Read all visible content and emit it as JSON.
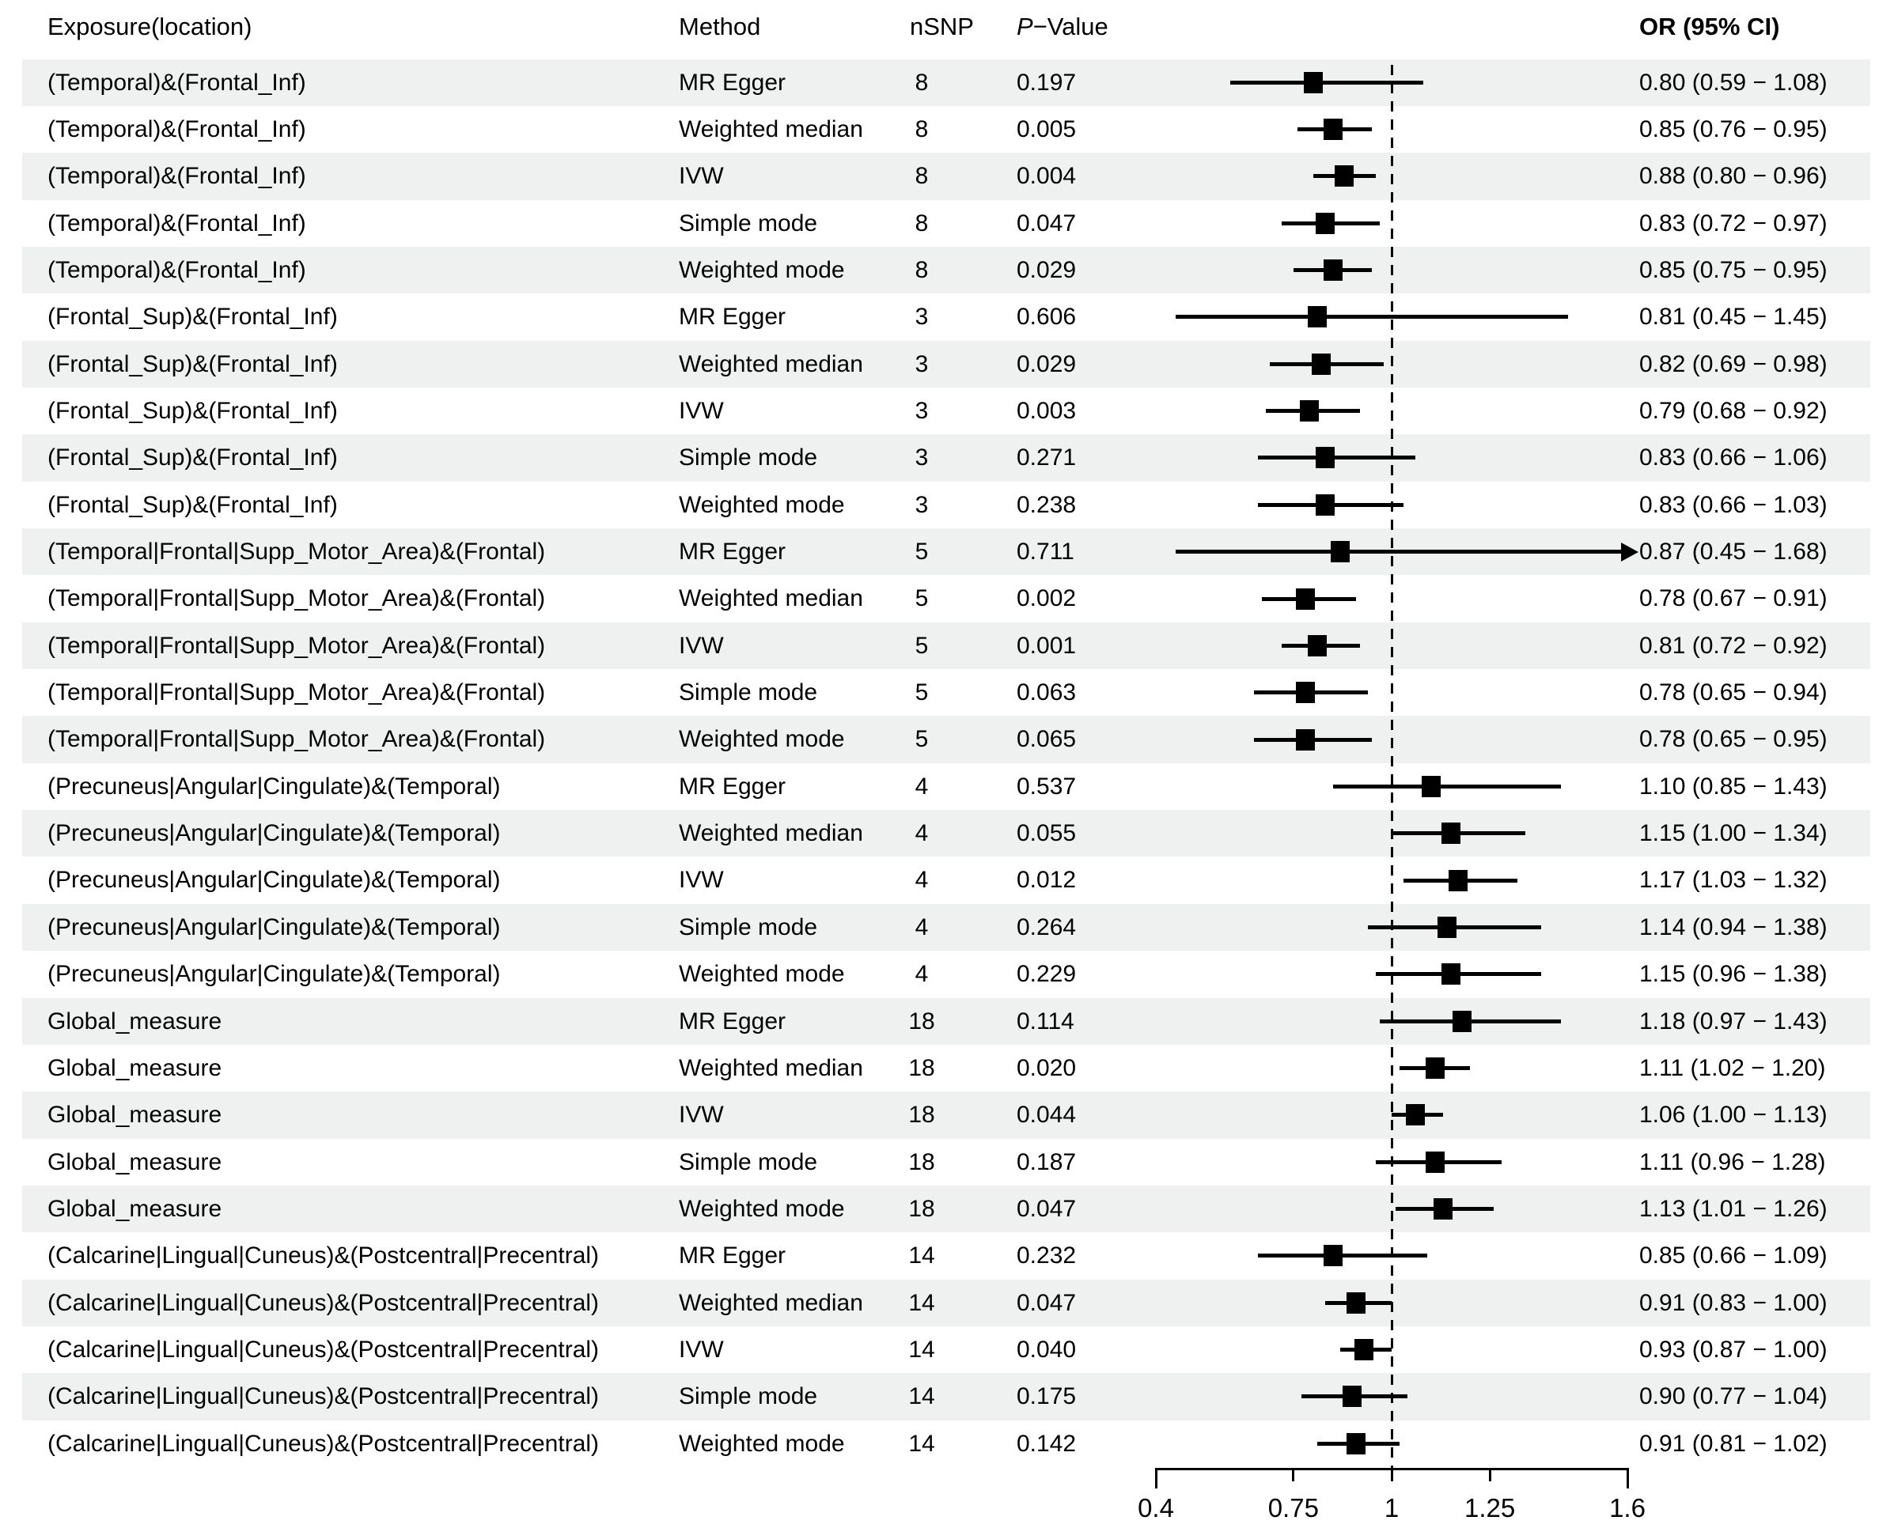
{
  "header": {
    "exposure": "Exposure(location)",
    "method": "Method",
    "nsnp": "nSNP",
    "pvalue_italic": "P",
    "pvalue_rest": "−Value",
    "or_ci": "OR (95% CI)"
  },
  "colors": {
    "stripe": "#eef1f0",
    "text": "#000000",
    "marker": "#000000",
    "reference_line": "#000000"
  },
  "chart_data": {
    "type": "forest",
    "columns": [
      "Exposure(location)",
      "Method",
      "nSNP",
      "P-Value",
      "OR (95% CI)"
    ],
    "xaxis": {
      "ticks": [
        0.4,
        0.75,
        1,
        1.25,
        1.6
      ],
      "tick_labels": [
        "0.4",
        "0.75",
        "1",
        "1.25",
        "1.6"
      ],
      "range": [
        0.4,
        1.6
      ],
      "reference_line": 1,
      "scale": "linear"
    },
    "rows": [
      {
        "exposure": "(Temporal)&(Frontal_Inf)",
        "method": "MR Egger",
        "nsnp": 8,
        "pvalue": "0.197",
        "or": 0.8,
        "ci_low": 0.59,
        "ci_high": 1.08,
        "or_text": "0.80 (0.59 − 1.08)",
        "arrow": false
      },
      {
        "exposure": "(Temporal)&(Frontal_Inf)",
        "method": "Weighted median",
        "nsnp": 8,
        "pvalue": "0.005",
        "or": 0.85,
        "ci_low": 0.76,
        "ci_high": 0.95,
        "or_text": "0.85 (0.76 − 0.95)",
        "arrow": false
      },
      {
        "exposure": "(Temporal)&(Frontal_Inf)",
        "method": "IVW",
        "nsnp": 8,
        "pvalue": "0.004",
        "or": 0.88,
        "ci_low": 0.8,
        "ci_high": 0.96,
        "or_text": "0.88 (0.80 − 0.96)",
        "arrow": false
      },
      {
        "exposure": "(Temporal)&(Frontal_Inf)",
        "method": "Simple mode",
        "nsnp": 8,
        "pvalue": "0.047",
        "or": 0.83,
        "ci_low": 0.72,
        "ci_high": 0.97,
        "or_text": "0.83 (0.72 − 0.97)",
        "arrow": false
      },
      {
        "exposure": "(Temporal)&(Frontal_Inf)",
        "method": "Weighted mode",
        "nsnp": 8,
        "pvalue": "0.029",
        "or": 0.85,
        "ci_low": 0.75,
        "ci_high": 0.95,
        "or_text": "0.85 (0.75 − 0.95)",
        "arrow": false
      },
      {
        "exposure": "(Frontal_Sup)&(Frontal_Inf)",
        "method": "MR Egger",
        "nsnp": 3,
        "pvalue": "0.606",
        "or": 0.81,
        "ci_low": 0.45,
        "ci_high": 1.45,
        "or_text": "0.81 (0.45 − 1.45)",
        "arrow": false
      },
      {
        "exposure": "(Frontal_Sup)&(Frontal_Inf)",
        "method": "Weighted median",
        "nsnp": 3,
        "pvalue": "0.029",
        "or": 0.82,
        "ci_low": 0.69,
        "ci_high": 0.98,
        "or_text": "0.82 (0.69 − 0.98)",
        "arrow": false
      },
      {
        "exposure": "(Frontal_Sup)&(Frontal_Inf)",
        "method": "IVW",
        "nsnp": 3,
        "pvalue": "0.003",
        "or": 0.79,
        "ci_low": 0.68,
        "ci_high": 0.92,
        "or_text": "0.79 (0.68 − 0.92)",
        "arrow": false
      },
      {
        "exposure": "(Frontal_Sup)&(Frontal_Inf)",
        "method": "Simple mode",
        "nsnp": 3,
        "pvalue": "0.271",
        "or": 0.83,
        "ci_low": 0.66,
        "ci_high": 1.06,
        "or_text": "0.83 (0.66 − 1.06)",
        "arrow": false
      },
      {
        "exposure": "(Frontal_Sup)&(Frontal_Inf)",
        "method": "Weighted mode",
        "nsnp": 3,
        "pvalue": "0.238",
        "or": 0.83,
        "ci_low": 0.66,
        "ci_high": 1.03,
        "or_text": "0.83 (0.66 − 1.03)",
        "arrow": false
      },
      {
        "exposure": "(Temporal|Frontal|Supp_Motor_Area)&(Frontal)",
        "method": "MR Egger",
        "nsnp": 5,
        "pvalue": "0.711",
        "or": 0.87,
        "ci_low": 0.45,
        "ci_high": 1.68,
        "or_text": "0.87 (0.45 − 1.68)",
        "arrow": true
      },
      {
        "exposure": "(Temporal|Frontal|Supp_Motor_Area)&(Frontal)",
        "method": "Weighted median",
        "nsnp": 5,
        "pvalue": "0.002",
        "or": 0.78,
        "ci_low": 0.67,
        "ci_high": 0.91,
        "or_text": "0.78 (0.67 − 0.91)",
        "arrow": false
      },
      {
        "exposure": "(Temporal|Frontal|Supp_Motor_Area)&(Frontal)",
        "method": "IVW",
        "nsnp": 5,
        "pvalue": "0.001",
        "or": 0.81,
        "ci_low": 0.72,
        "ci_high": 0.92,
        "or_text": "0.81 (0.72 − 0.92)",
        "arrow": false
      },
      {
        "exposure": "(Temporal|Frontal|Supp_Motor_Area)&(Frontal)",
        "method": "Simple mode",
        "nsnp": 5,
        "pvalue": "0.063",
        "or": 0.78,
        "ci_low": 0.65,
        "ci_high": 0.94,
        "or_text": "0.78 (0.65 − 0.94)",
        "arrow": false
      },
      {
        "exposure": "(Temporal|Frontal|Supp_Motor_Area)&(Frontal)",
        "method": "Weighted mode",
        "nsnp": 5,
        "pvalue": "0.065",
        "or": 0.78,
        "ci_low": 0.65,
        "ci_high": 0.95,
        "or_text": "0.78 (0.65 − 0.95)",
        "arrow": false
      },
      {
        "exposure": "(Precuneus|Angular|Cingulate)&(Temporal)",
        "method": "MR Egger",
        "nsnp": 4,
        "pvalue": "0.537",
        "or": 1.1,
        "ci_low": 0.85,
        "ci_high": 1.43,
        "or_text": "1.10 (0.85 − 1.43)",
        "arrow": false
      },
      {
        "exposure": "(Precuneus|Angular|Cingulate)&(Temporal)",
        "method": "Weighted median",
        "nsnp": 4,
        "pvalue": "0.055",
        "or": 1.15,
        "ci_low": 1.0,
        "ci_high": 1.34,
        "or_text": "1.15 (1.00 − 1.34)",
        "arrow": false
      },
      {
        "exposure": "(Precuneus|Angular|Cingulate)&(Temporal)",
        "method": "IVW",
        "nsnp": 4,
        "pvalue": "0.012",
        "or": 1.17,
        "ci_low": 1.03,
        "ci_high": 1.32,
        "or_text": "1.17 (1.03 − 1.32)",
        "arrow": false
      },
      {
        "exposure": "(Precuneus|Angular|Cingulate)&(Temporal)",
        "method": "Simple mode",
        "nsnp": 4,
        "pvalue": "0.264",
        "or": 1.14,
        "ci_low": 0.94,
        "ci_high": 1.38,
        "or_text": "1.14 (0.94 − 1.38)",
        "arrow": false
      },
      {
        "exposure": "(Precuneus|Angular|Cingulate)&(Temporal)",
        "method": "Weighted mode",
        "nsnp": 4,
        "pvalue": "0.229",
        "or": 1.15,
        "ci_low": 0.96,
        "ci_high": 1.38,
        "or_text": "1.15 (0.96 − 1.38)",
        "arrow": false
      },
      {
        "exposure": "Global_measure",
        "method": "MR Egger",
        "nsnp": 18,
        "pvalue": "0.114",
        "or": 1.18,
        "ci_low": 0.97,
        "ci_high": 1.43,
        "or_text": "1.18 (0.97 − 1.43)",
        "arrow": false
      },
      {
        "exposure": "Global_measure",
        "method": "Weighted median",
        "nsnp": 18,
        "pvalue": "0.020",
        "or": 1.11,
        "ci_low": 1.02,
        "ci_high": 1.2,
        "or_text": "1.11 (1.02 − 1.20)",
        "arrow": false
      },
      {
        "exposure": "Global_measure",
        "method": "IVW",
        "nsnp": 18,
        "pvalue": "0.044",
        "or": 1.06,
        "ci_low": 1.0,
        "ci_high": 1.13,
        "or_text": "1.06 (1.00 − 1.13)",
        "arrow": false
      },
      {
        "exposure": "Global_measure",
        "method": "Simple mode",
        "nsnp": 18,
        "pvalue": "0.187",
        "or": 1.11,
        "ci_low": 0.96,
        "ci_high": 1.28,
        "or_text": "1.11 (0.96 − 1.28)",
        "arrow": false
      },
      {
        "exposure": "Global_measure",
        "method": "Weighted mode",
        "nsnp": 18,
        "pvalue": "0.047",
        "or": 1.13,
        "ci_low": 1.01,
        "ci_high": 1.26,
        "or_text": "1.13 (1.01 − 1.26)",
        "arrow": false
      },
      {
        "exposure": "(Calcarine|Lingual|Cuneus)&(Postcentral|Precentral)",
        "method": "MR Egger",
        "nsnp": 14,
        "pvalue": "0.232",
        "or": 0.85,
        "ci_low": 0.66,
        "ci_high": 1.09,
        "or_text": "0.85 (0.66 − 1.09)",
        "arrow": false
      },
      {
        "exposure": "(Calcarine|Lingual|Cuneus)&(Postcentral|Precentral)",
        "method": "Weighted median",
        "nsnp": 14,
        "pvalue": "0.047",
        "or": 0.91,
        "ci_low": 0.83,
        "ci_high": 1.0,
        "or_text": "0.91 (0.83 − 1.00)",
        "arrow": false
      },
      {
        "exposure": "(Calcarine|Lingual|Cuneus)&(Postcentral|Precentral)",
        "method": "IVW",
        "nsnp": 14,
        "pvalue": "0.040",
        "or": 0.93,
        "ci_low": 0.87,
        "ci_high": 1.0,
        "or_text": "0.93 (0.87 − 1.00)",
        "arrow": false
      },
      {
        "exposure": "(Calcarine|Lingual|Cuneus)&(Postcentral|Precentral)",
        "method": "Simple mode",
        "nsnp": 14,
        "pvalue": "0.175",
        "or": 0.9,
        "ci_low": 0.77,
        "ci_high": 1.04,
        "or_text": "0.90 (0.77 − 1.04)",
        "arrow": false
      },
      {
        "exposure": "(Calcarine|Lingual|Cuneus)&(Postcentral|Precentral)",
        "method": "Weighted mode",
        "nsnp": 14,
        "pvalue": "0.142",
        "or": 0.91,
        "ci_low": 0.81,
        "ci_high": 1.02,
        "or_text": "0.91 (0.81 − 1.02)",
        "arrow": false
      }
    ]
  }
}
